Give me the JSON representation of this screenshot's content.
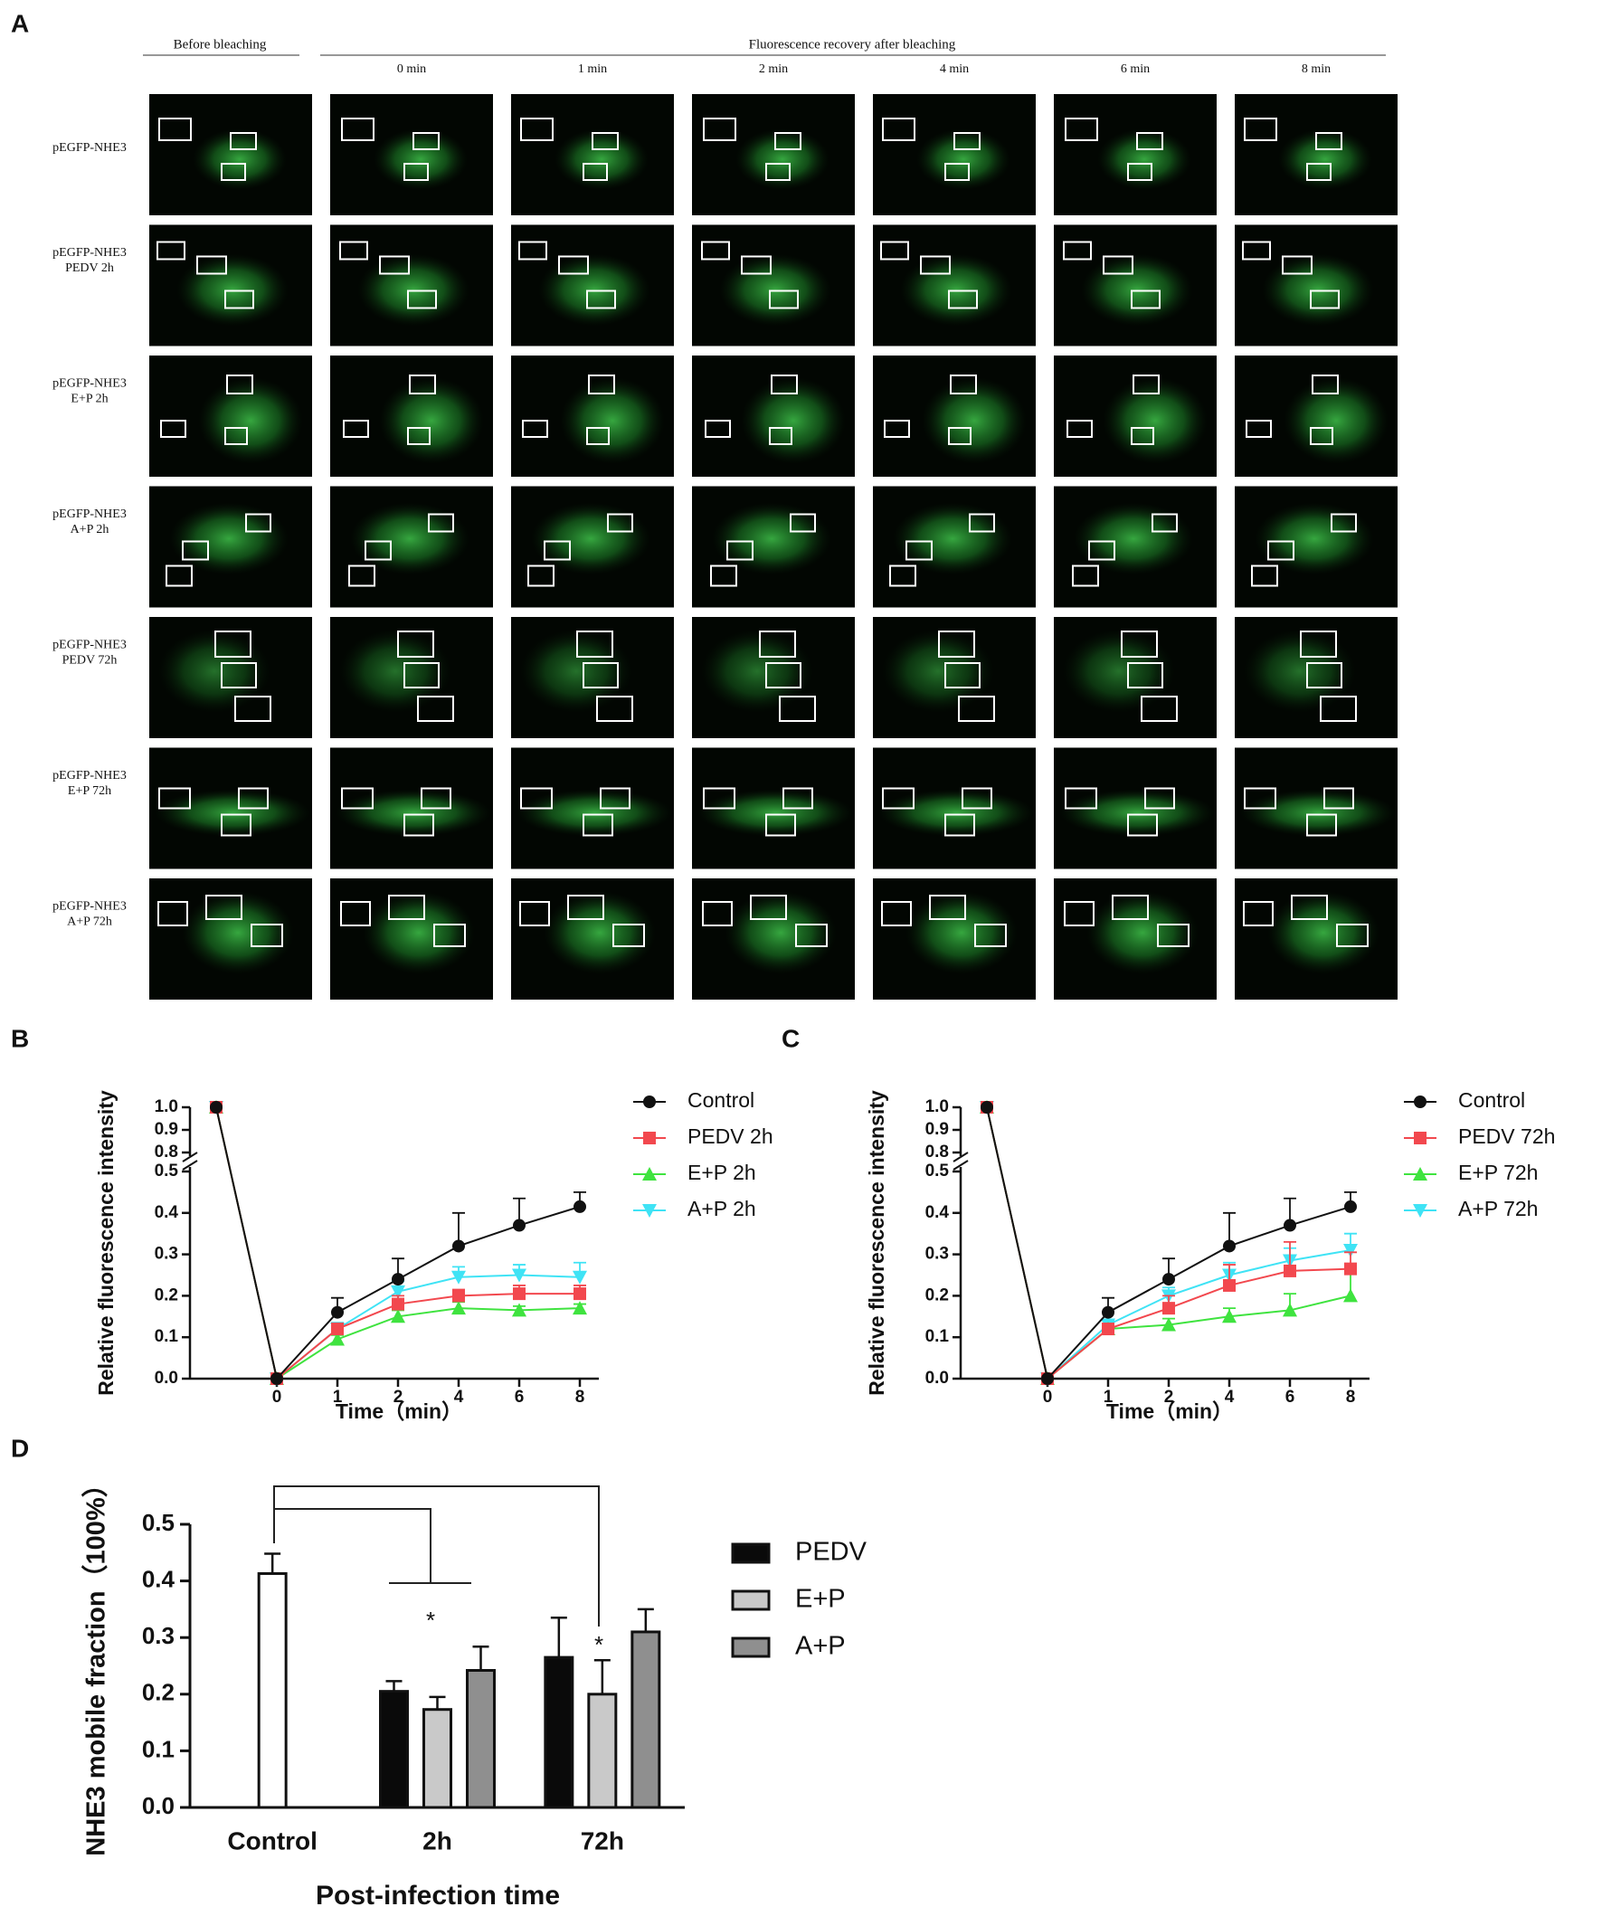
{
  "panel_a": {
    "label": "A",
    "before": "Before bleaching",
    "recovery": "Fluorescence recovery after bleaching",
    "times": [
      "0 min",
      "1 min",
      "2 min",
      "4 min",
      "6 min",
      "8 min"
    ],
    "rows": [
      [
        "pEGFP-NHE3"
      ],
      [
        "pEGFP-NHE3",
        "PEDV 2h"
      ],
      [
        "pEGFP-NHE3",
        "E+P 2h"
      ],
      [
        "pEGFP-NHE3",
        "A+P 2h"
      ],
      [
        "pEGFP-NHE3",
        "PEDV 72h"
      ],
      [
        "pEGFP-NHE3",
        "E+P 72h"
      ],
      [
        "pEGFP-NHE3",
        "A+P 72h"
      ]
    ]
  },
  "chart_data": [
    {
      "panel": "B",
      "type": "line",
      "ylabel": "Relative fluorescence intensity",
      "xlabel": "Time（min）",
      "categories": [
        null,
        "0",
        "1",
        "2",
        "4",
        "6",
        "8"
      ],
      "ylim": [
        0,
        1.0
      ],
      "ybreak": [
        0.5,
        0.8
      ],
      "yticks": [
        {
          "value": 0,
          "label": "0.0"
        },
        0.1,
        0.2,
        0.3,
        0.4,
        0.5,
        0.8,
        0.9,
        {
          "value": 1,
          "label": "1.0"
        }
      ],
      "series": [
        {
          "name": "A+P 2h",
          "color": "#3fe3f5",
          "marker": "triangle-down",
          "values": [
            1.0,
            0,
            0.12,
            0.21,
            0.245,
            0.25,
            0.245
          ],
          "errors": [
            null,
            null,
            0.015,
            0.025,
            0.025,
            0.025,
            0.035
          ]
        },
        {
          "name": "E+P 2h",
          "color": "#3fe33f",
          "marker": "triangle-up",
          "values": [
            1.0,
            0,
            0.095,
            0.15,
            0.17,
            0.165,
            0.17
          ],
          "errors": [
            null,
            null,
            0.01,
            0.015,
            0.015,
            0.01,
            0.01
          ]
        },
        {
          "name": "PEDV 2h",
          "color": "#f2484e",
          "marker": "square",
          "values": [
            1.0,
            0,
            0.12,
            0.18,
            0.2,
            0.205,
            0.205
          ],
          "errors": [
            null,
            null,
            0.01,
            0.02,
            0.015,
            0.02,
            0.02
          ]
        },
        {
          "name": "Control",
          "color": "#111111",
          "marker": "circle",
          "values": [
            1.0,
            0,
            0.16,
            0.24,
            0.32,
            0.37,
            0.415
          ],
          "errors": [
            null,
            null,
            0.035,
            0.05,
            0.08,
            0.065,
            0.035
          ]
        }
      ]
    },
    {
      "panel": "C",
      "type": "line",
      "ylabel": "Relative fluorescence intensity",
      "xlabel": "Time（min）",
      "categories": [
        null,
        "0",
        "1",
        "2",
        "4",
        "6",
        "8"
      ],
      "ylim": [
        0,
        1.0
      ],
      "ybreak": [
        0.5,
        0.8
      ],
      "yticks": [
        {
          "value": 0,
          "label": "0.0"
        },
        0.1,
        0.2,
        0.3,
        0.4,
        0.5,
        0.8,
        0.9,
        {
          "value": 1,
          "label": "1.0"
        }
      ],
      "series": [
        {
          "name": "A+P 72h",
          "color": "#3fe3f5",
          "marker": "triangle-down",
          "values": [
            1.0,
            0,
            0.13,
            0.2,
            0.25,
            0.285,
            0.31
          ],
          "errors": [
            null,
            null,
            0.01,
            0.02,
            0.03,
            0.03,
            0.04
          ]
        },
        {
          "name": "E+P 72h",
          "color": "#3fe33f",
          "marker": "triangle-up",
          "values": [
            1.0,
            0,
            0.12,
            0.13,
            0.15,
            0.165,
            0.2
          ],
          "errors": [
            null,
            null,
            0.01,
            0.015,
            0.02,
            0.04,
            0.06
          ]
        },
        {
          "name": "PEDV 72h",
          "color": "#f2484e",
          "marker": "square",
          "values": [
            1.0,
            0,
            0.12,
            0.17,
            0.225,
            0.26,
            0.265
          ],
          "errors": [
            null,
            null,
            0.01,
            0.03,
            0.05,
            0.07,
            0.04
          ]
        },
        {
          "name": "Control",
          "color": "#111111",
          "marker": "circle",
          "values": [
            1.0,
            0,
            0.16,
            0.24,
            0.32,
            0.37,
            0.415
          ],
          "errors": [
            null,
            null,
            0.035,
            0.05,
            0.08,
            0.065,
            0.035
          ]
        }
      ]
    },
    {
      "panel": "D",
      "type": "bar",
      "ylabel": "NHE3 mobile fraction（100%）",
      "xlabel": "Post-infection time",
      "categories": [
        "Control",
        "2h",
        "72h"
      ],
      "ylim": [
        0,
        0.5
      ],
      "yticks": [
        {
          "value": 0,
          "label": "0.0"
        },
        0.1,
        0.2,
        0.3,
        0.4,
        0.5
      ],
      "control": {
        "value": 0.413,
        "error": 0.035,
        "color": "#ffffff"
      },
      "series": [
        {
          "name": "PEDV",
          "color": "#0a0a0a",
          "values": [
            null,
            0.205,
            0.265
          ],
          "errors": [
            null,
            0.018,
            0.07
          ]
        },
        {
          "name": "E+P",
          "color": "#c9c9c9",
          "values": [
            null,
            0.173,
            0.2
          ],
          "errors": [
            null,
            0.022,
            0.06
          ]
        },
        {
          "name": "A+P",
          "color": "#8f8f8f",
          "values": [
            null,
            0.242,
            0.31
          ],
          "errors": [
            null,
            0.042,
            0.04
          ]
        }
      ],
      "annotations": [
        "*",
        "*"
      ]
    }
  ]
}
